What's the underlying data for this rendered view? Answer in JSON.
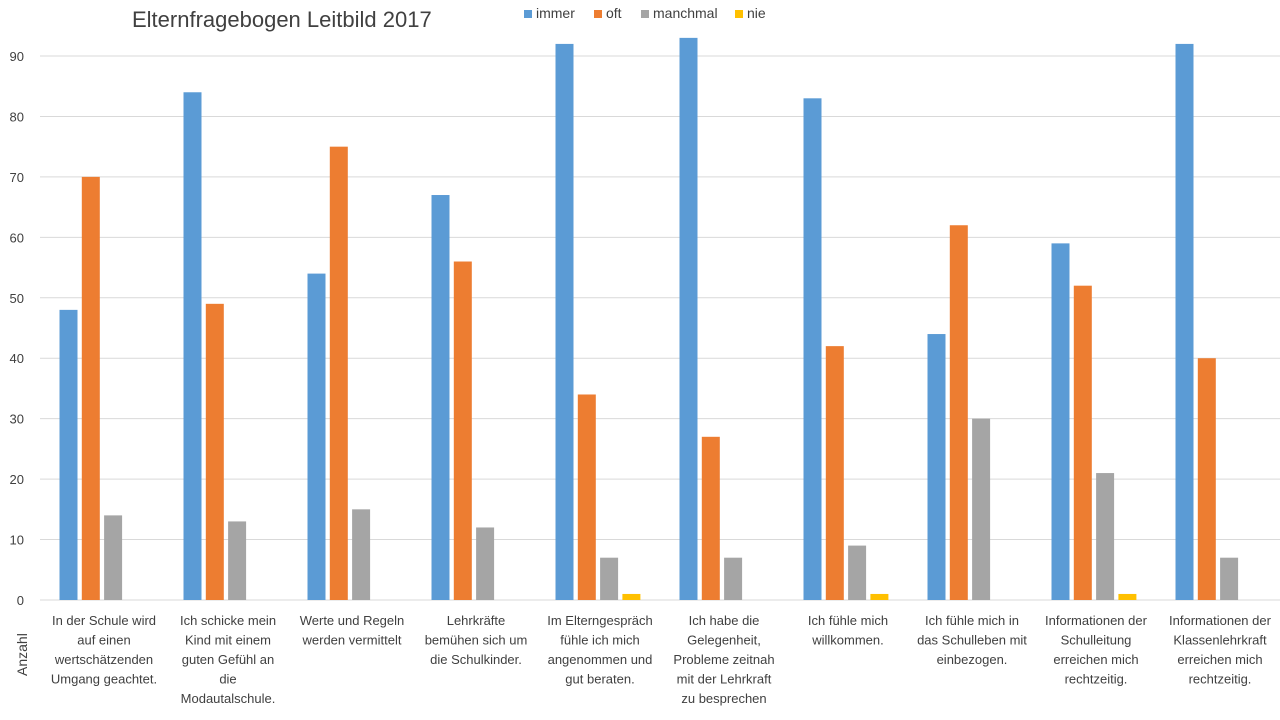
{
  "chart_data": {
    "type": "bar",
    "title": "Elternfragebogen Leitbild 2017",
    "ylabel": "Anzahl",
    "xlabel": "",
    "ylim": [
      0,
      95
    ],
    "yticks": [
      0,
      10,
      20,
      30,
      40,
      50,
      60,
      70,
      80,
      90
    ],
    "grid": true,
    "legend_position": "top",
    "categories": [
      [
        "In der Schule wird",
        "auf einen",
        "wertschätzenden",
        "Umgang geachtet."
      ],
      [
        "Ich schicke mein",
        "Kind mit einem",
        "guten Gefühl an",
        "die",
        "Modautalschule."
      ],
      [
        "Werte und Regeln",
        "werden vermittelt"
      ],
      [
        "Lehrkräfte",
        "bemühen sich um",
        "die Schulkinder."
      ],
      [
        "Im Elterngespräch",
        "fühle ich mich",
        "angenommen und",
        "gut beraten."
      ],
      [
        "Ich habe die",
        "Gelegenheit,",
        "Probleme zeitnah",
        "mit der Lehrkraft",
        "zu besprechen"
      ],
      [
        "Ich fühle mich",
        "willkommen."
      ],
      [
        "Ich fühle mich in",
        "das Schulleben mit",
        "einbezogen."
      ],
      [
        "Informationen der",
        "Schulleitung",
        "erreichen mich",
        "rechtzeitig."
      ],
      [
        "Informationen der",
        "Klassenlehrkraft",
        "erreichen mich",
        "rechtzeitig."
      ]
    ],
    "series": [
      {
        "name": "immer",
        "color": "#5b9bd5",
        "values": [
          48,
          84,
          54,
          67,
          92,
          93,
          83,
          44,
          59,
          92
        ]
      },
      {
        "name": "oft",
        "color": "#ed7d31",
        "values": [
          70,
          49,
          75,
          56,
          34,
          27,
          42,
          62,
          52,
          40
        ]
      },
      {
        "name": "manchmal",
        "color": "#a5a5a5",
        "values": [
          14,
          13,
          15,
          12,
          7,
          7,
          9,
          30,
          21,
          7
        ]
      },
      {
        "name": "nie",
        "color": "#ffc000",
        "values": [
          0,
          0,
          0,
          0,
          1,
          0,
          1,
          0,
          1,
          0
        ]
      }
    ]
  }
}
